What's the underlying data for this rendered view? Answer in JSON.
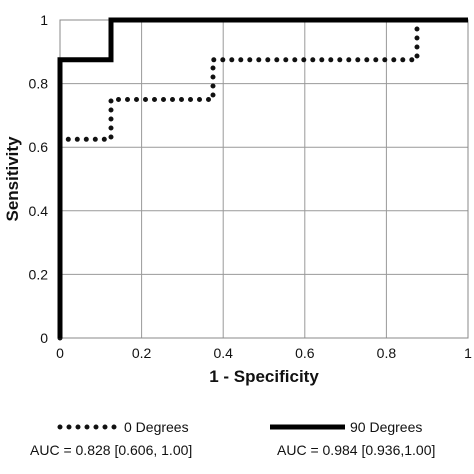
{
  "chart_data": {
    "type": "line",
    "title": "",
    "xlabel": "1 - Specificity",
    "ylabel": "Sensitivity",
    "xlim": [
      0,
      1
    ],
    "ylim": [
      0,
      1
    ],
    "x_ticks": [
      "0",
      "0.2",
      "0.4",
      "0.6",
      "0.8",
      "1"
    ],
    "y_ticks": [
      "0",
      "0.2",
      "0.4",
      "0.6",
      "0.8",
      "1"
    ],
    "grid": true,
    "legend_position": "bottom",
    "series": [
      {
        "name": "0 Degrees",
        "auc_label": "AUC = 0.828 [0.606, 1.00]",
        "style": "dotted",
        "color": "#111111",
        "x": [
          0.0,
          0.0,
          0.125,
          0.125,
          0.375,
          0.375,
          0.875,
          0.875
        ],
        "y": [
          0.0,
          0.625,
          0.625,
          0.75,
          0.75,
          0.875,
          0.875,
          1.0
        ]
      },
      {
        "name": "90 Degrees",
        "auc_label": "AUC = 0.984 [0.936,1.00]",
        "style": "solid",
        "color": "#000000",
        "x": [
          0.0,
          0.0,
          0.125,
          0.125,
          1.0
        ],
        "y": [
          0.0,
          0.875,
          0.875,
          1.0,
          1.0
        ]
      }
    ]
  }
}
